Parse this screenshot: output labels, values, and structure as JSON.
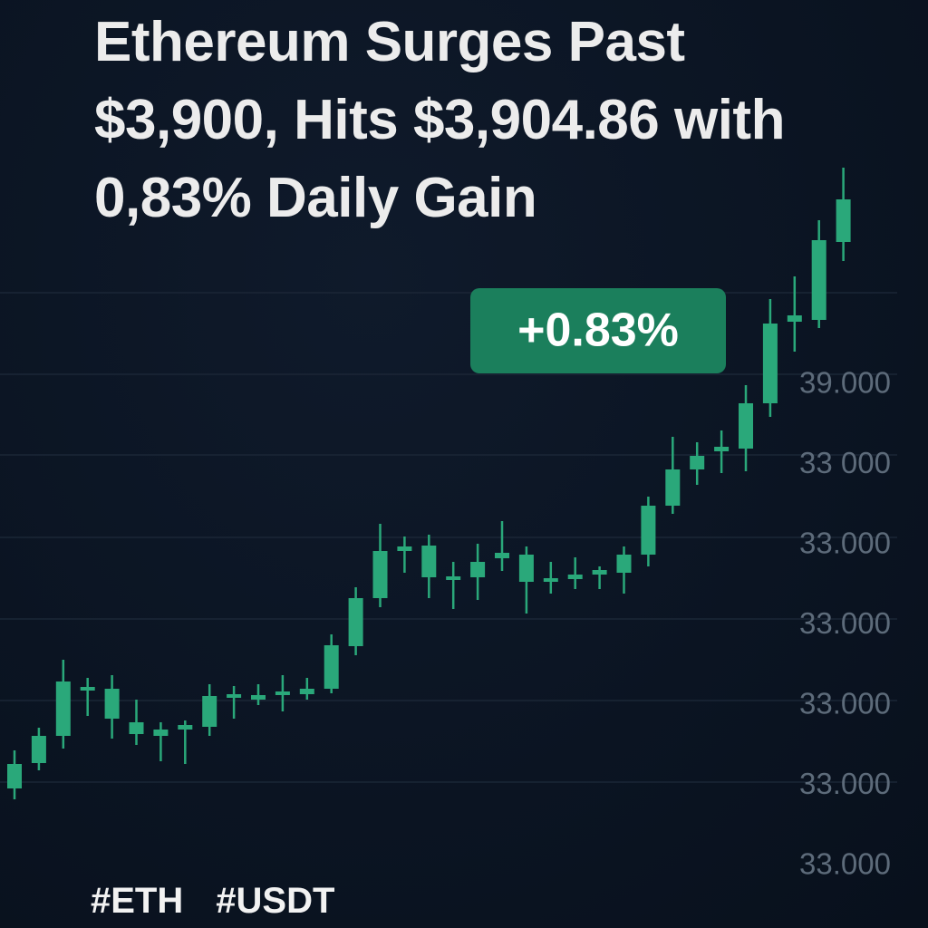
{
  "title": "Ethereum Surges Past $3,900, Hits $3,904.86 with 0,83% Daily Gain",
  "badge": "+0.83%",
  "axis_labels": [
    "39.000",
    "33 000",
    "33.000",
    "33.000",
    "33.000",
    "33.000",
    "33.000"
  ],
  "hashtags": [
    "#ETH",
    "#USDT"
  ],
  "chart_data": {
    "type": "candlestick",
    "color": "#2aa87a",
    "ylim": [
      0,
      80
    ],
    "open": [
      9.0,
      11.8,
      14.8,
      19.8,
      16.7,
      15.0,
      14.8,
      15.5,
      15.8,
      19.0,
      18.8,
      19.3,
      19.4,
      20.0,
      24.7,
      30.0,
      35.2,
      32.3,
      32.0,
      32.3,
      34.4,
      31.8,
      31.8,
      32.1,
      32.6,
      32.8,
      34.8,
      40.2,
      44.2,
      46.2,
      46.5,
      51.5,
      60.5,
      60.7,
      69.3
    ],
    "high": [
      13.2,
      15.7,
      23.2,
      21.2,
      21.5,
      18.8,
      16.3,
      16.5,
      20.5,
      20.3,
      20.5,
      21.5,
      21.2,
      26.0,
      31.2,
      38.2,
      36.8,
      37.0,
      34.0,
      36.0,
      38.5,
      35.7,
      34.0,
      34.5,
      33.5,
      35.7,
      41.2,
      47.8,
      47.2,
      48.5,
      53.5,
      63.0,
      65.5,
      71.7,
      77.5
    ],
    "low": [
      7.8,
      11.0,
      13.4,
      17.0,
      14.5,
      13.8,
      12.0,
      11.7,
      14.8,
      16.7,
      18.2,
      17.5,
      18.8,
      19.5,
      23.7,
      29.0,
      32.8,
      30.0,
      28.8,
      29.8,
      33.0,
      28.3,
      30.5,
      31.0,
      31.0,
      30.5,
      33.5,
      39.3,
      42.5,
      43.8,
      44.0,
      50.0,
      57.2,
      59.8,
      67.2
    ],
    "close": [
      11.7,
      14.8,
      20.8,
      20.2,
      20.0,
      16.3,
      15.5,
      16.0,
      19.2,
      19.4,
      19.3,
      19.7,
      20.0,
      24.8,
      30.0,
      35.2,
      35.7,
      35.8,
      32.4,
      34.0,
      35.0,
      34.8,
      32.2,
      32.6,
      33.1,
      34.8,
      40.2,
      44.2,
      45.7,
      46.7,
      51.5,
      60.3,
      61.2,
      69.5,
      74.0
    ]
  }
}
